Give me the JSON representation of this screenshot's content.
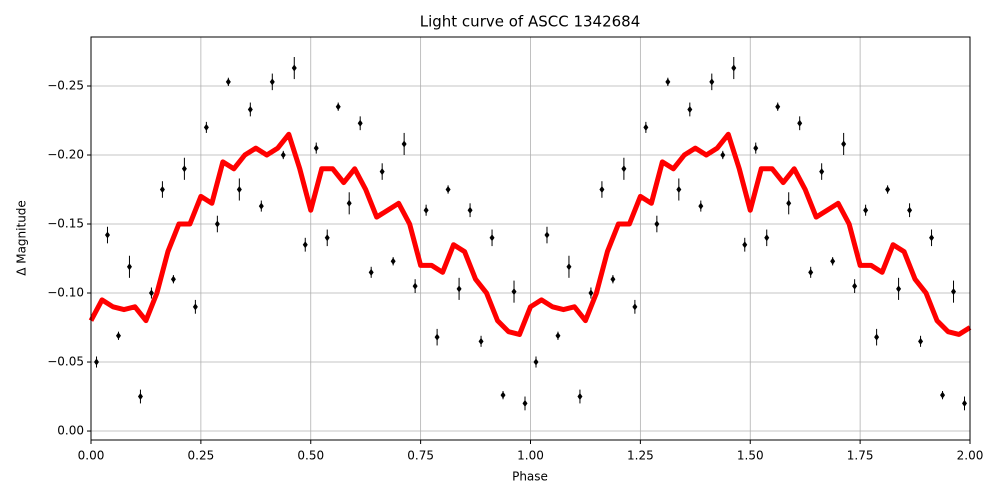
{
  "chart_data": {
    "type": "scatter",
    "title": "Light curve of ASCC 1342684",
    "x_label": "Phase",
    "y_label": "Δ Magnitude",
    "xlim": [
      0,
      2
    ],
    "ylim": [
      0.0065,
      -0.2855
    ],
    "grid": true,
    "xticks": [
      {
        "value": 0,
        "label": "0.00"
      },
      {
        "value": 0.25,
        "label": "0.25"
      },
      {
        "value": 0.5,
        "label": "0.50"
      },
      {
        "value": 0.75,
        "label": "0.75"
      },
      {
        "value": 1,
        "label": "1.00"
      },
      {
        "value": 1.25,
        "label": "1.25"
      },
      {
        "value": 1.5,
        "label": "1.50"
      },
      {
        "value": 1.75,
        "label": "1.75"
      },
      {
        "value": 2,
        "label": "2.00"
      }
    ],
    "yticks": [
      {
        "value": 0,
        "label": "0.00"
      },
      {
        "value": -0.05,
        "label": "−0.05"
      },
      {
        "value": -0.1,
        "label": "−0.10"
      },
      {
        "value": -0.15,
        "label": "−0.15"
      },
      {
        "value": -0.2,
        "label": "−0.20"
      },
      {
        "value": -0.25,
        "label": "−0.25"
      }
    ],
    "series": [
      {
        "type": "scatter",
        "color": "#000000",
        "x": [
          0.0125,
          0.0375,
          0.0625,
          0.0875,
          0.1125,
          0.1375,
          0.1625,
          0.1875,
          0.2125,
          0.2375,
          0.2625,
          0.2875,
          0.3125,
          0.3375,
          0.3625,
          0.3875,
          0.4125,
          0.4375,
          0.4625,
          0.4875,
          0.5125,
          0.5375,
          0.5625,
          0.5875,
          0.6125,
          0.6375,
          0.6625,
          0.6875,
          0.7125,
          0.7375,
          0.7625,
          0.7875,
          0.8125,
          0.8375,
          0.8625,
          0.8875,
          0.9125,
          0.9375,
          0.9625,
          0.9875,
          1.0125,
          1.0375,
          1.0625,
          1.0875,
          1.1125,
          1.1375,
          1.1625,
          1.1875,
          1.2125,
          1.2375,
          1.2625,
          1.2875,
          1.3125,
          1.3375,
          1.3625,
          1.3875,
          1.4125,
          1.4375,
          1.4625,
          1.4875,
          1.5125,
          1.5375,
          1.5625,
          1.5875,
          1.6125,
          1.6375,
          1.6625,
          1.6875,
          1.7125,
          1.7375,
          1.7625,
          1.7875,
          1.8125,
          1.8375,
          1.8625,
          1.8875,
          1.9125,
          1.9375,
          1.9625,
          1.9875
        ],
        "values": [
          -0.05,
          -0.142,
          -0.069,
          -0.119,
          -0.025,
          -0.1,
          -0.175,
          -0.11,
          -0.19,
          -0.09,
          -0.22,
          -0.15,
          -0.253,
          -0.175,
          -0.233,
          -0.163,
          -0.253,
          -0.2,
          -0.263,
          -0.135,
          -0.205,
          -0.14,
          -0.235,
          -0.165,
          -0.223,
          -0.115,
          -0.188,
          -0.123,
          -0.208,
          -0.105,
          -0.16,
          -0.068,
          -0.175,
          -0.103,
          -0.16,
          -0.065,
          -0.14,
          -0.026,
          -0.101,
          -0.02,
          -0.05,
          -0.142,
          -0.069,
          -0.119,
          -0.025,
          -0.1,
          -0.175,
          -0.11,
          -0.19,
          -0.09,
          -0.22,
          -0.15,
          -0.253,
          -0.175,
          -0.233,
          -0.163,
          -0.253,
          -0.2,
          -0.263,
          -0.135,
          -0.205,
          -0.14,
          -0.235,
          -0.165,
          -0.223,
          -0.115,
          -0.188,
          -0.123,
          -0.208,
          -0.105,
          -0.16,
          -0.068,
          -0.175,
          -0.103,
          -0.16,
          -0.065,
          -0.14,
          -0.026,
          -0.101,
          -0.02
        ],
        "errors": [
          0.004,
          0.006,
          0.003,
          0.008,
          0.005,
          0.004,
          0.006,
          0.003,
          0.008,
          0.005,
          0.004,
          0.006,
          0.003,
          0.008,
          0.005,
          0.004,
          0.006,
          0.003,
          0.008,
          0.005,
          0.004,
          0.006,
          0.003,
          0.008,
          0.005,
          0.004,
          0.006,
          0.003,
          0.008,
          0.005,
          0.004,
          0.006,
          0.003,
          0.008,
          0.005,
          0.004,
          0.006,
          0.003,
          0.008,
          0.005,
          0.004,
          0.006,
          0.003,
          0.008,
          0.005,
          0.004,
          0.006,
          0.003,
          0.008,
          0.005,
          0.004,
          0.006,
          0.003,
          0.008,
          0.005,
          0.004,
          0.006,
          0.003,
          0.008,
          0.005,
          0.004,
          0.006,
          0.003,
          0.008,
          0.005,
          0.004,
          0.006,
          0.003,
          0.008,
          0.005,
          0.004,
          0.006,
          0.003,
          0.008,
          0.005,
          0.004,
          0.006,
          0.003,
          0.008,
          0.005
        ]
      },
      {
        "type": "line",
        "color": "#ff0000",
        "x": [
          0,
          0.025,
          0.05,
          0.075,
          0.1,
          0.125,
          0.15,
          0.175,
          0.2,
          0.225,
          0.25,
          0.275,
          0.3,
          0.325,
          0.35,
          0.375,
          0.4,
          0.425,
          0.45,
          0.475,
          0.5,
          0.525,
          0.55,
          0.575,
          0.6,
          0.625,
          0.65,
          0.675,
          0.7,
          0.725,
          0.75,
          0.775,
          0.8,
          0.825,
          0.85,
          0.875,
          0.9,
          0.925,
          0.95,
          0.975,
          1,
          1.025,
          1.05,
          1.075,
          1.1,
          1.125,
          1.15,
          1.175,
          1.2,
          1.225,
          1.25,
          1.275,
          1.3,
          1.325,
          1.35,
          1.375,
          1.4,
          1.425,
          1.45,
          1.475,
          1.5,
          1.525,
          1.55,
          1.575,
          1.6,
          1.625,
          1.65,
          1.675,
          1.7,
          1.725,
          1.75,
          1.775,
          1.8,
          1.825,
          1.85,
          1.875,
          1.9,
          1.925,
          1.95,
          1.975,
          2
        ],
        "values": [
          -0.08,
          -0.095,
          -0.09,
          -0.088,
          -0.09,
          -0.08,
          -0.1,
          -0.13,
          -0.15,
          -0.15,
          -0.17,
          -0.165,
          -0.195,
          -0.19,
          -0.2,
          -0.205,
          -0.2,
          -0.205,
          -0.215,
          -0.19,
          -0.16,
          -0.19,
          -0.19,
          -0.18,
          -0.19,
          -0.175,
          -0.155,
          -0.16,
          -0.165,
          -0.15,
          -0.12,
          -0.12,
          -0.115,
          -0.135,
          -0.13,
          -0.11,
          -0.1,
          -0.08,
          -0.072,
          -0.07,
          -0.09,
          -0.095,
          -0.09,
          -0.088,
          -0.09,
          -0.08,
          -0.1,
          -0.13,
          -0.15,
          -0.15,
          -0.17,
          -0.165,
          -0.195,
          -0.19,
          -0.2,
          -0.205,
          -0.2,
          -0.205,
          -0.215,
          -0.19,
          -0.16,
          -0.19,
          -0.19,
          -0.18,
          -0.19,
          -0.175,
          -0.155,
          -0.16,
          -0.165,
          -0.15,
          -0.12,
          -0.12,
          -0.115,
          -0.135,
          -0.13,
          -0.11,
          -0.1,
          -0.08,
          -0.072,
          -0.07,
          -0.075
        ]
      }
    ]
  }
}
